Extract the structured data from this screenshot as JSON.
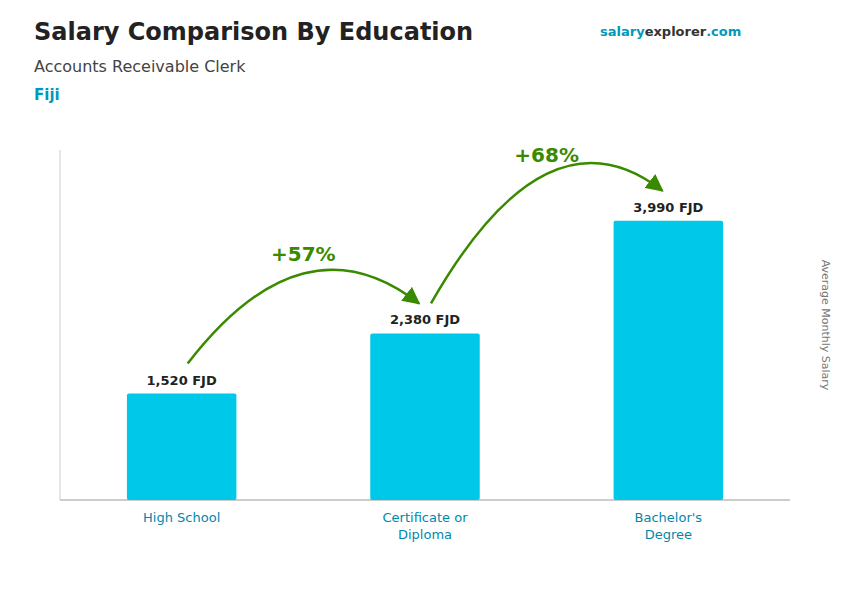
{
  "chart_data": {
    "type": "bar",
    "title": "Salary Comparison By Education",
    "subtitle": "Accounts Receivable Clerk",
    "ylabel": "Average Monthly Salary",
    "annotations": [
      "+57%",
      "+68%",
      "Fiji",
      "salary",
      "explorer",
      ".com"
    ],
    "categories": [
      "High School",
      "Certificate or\nDiploma",
      "Bachelor's\nDegree"
    ],
    "values": [
      1520,
      2380,
      3990
    ],
    "value_labels": [
      "1,520 FJD",
      "2,380 FJD",
      "3,990 FJD"
    ],
    "data_labels": true,
    "color": "#00c8e8",
    "ylim": [
      0,
      5000
    ],
    "tick_labels": "x",
    "grid": false
  }
}
